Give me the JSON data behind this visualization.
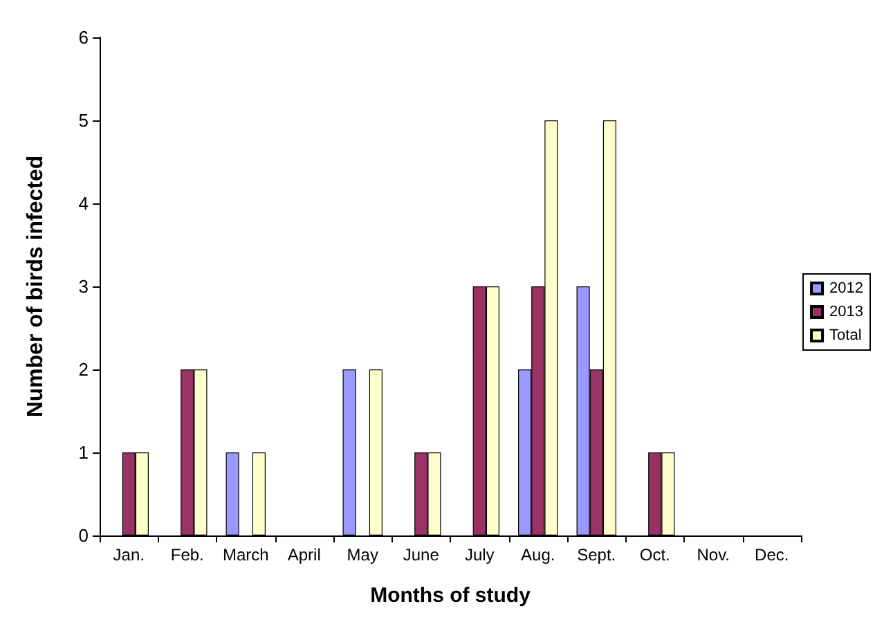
{
  "chart_data": {
    "type": "bar",
    "xlabel": "Months of study",
    "ylabel": "Number of birds infected",
    "categories": [
      "Jan.",
      "Feb.",
      "March",
      "April",
      "May",
      "June",
      "July",
      "Aug.",
      "Sept.",
      "Oct.",
      "Nov.",
      "Dec."
    ],
    "series": [
      {
        "name": "2012",
        "color": "#9999ff",
        "values": [
          0,
          0,
          1,
          0,
          2,
          0,
          0,
          2,
          3,
          0,
          0,
          0
        ]
      },
      {
        "name": "2013",
        "color": "#993366",
        "values": [
          1,
          2,
          0,
          0,
          0,
          1,
          3,
          3,
          2,
          1,
          0,
          0
        ]
      },
      {
        "name": "Total",
        "color": "#ffffcc",
        "values": [
          1,
          2,
          1,
          0,
          2,
          1,
          3,
          5,
          5,
          1,
          0,
          0
        ]
      }
    ],
    "ylim": [
      0,
      6
    ],
    "yticks": [
      0,
      1,
      2,
      3,
      4,
      5,
      6
    ],
    "grid": false,
    "legend": "right"
  }
}
